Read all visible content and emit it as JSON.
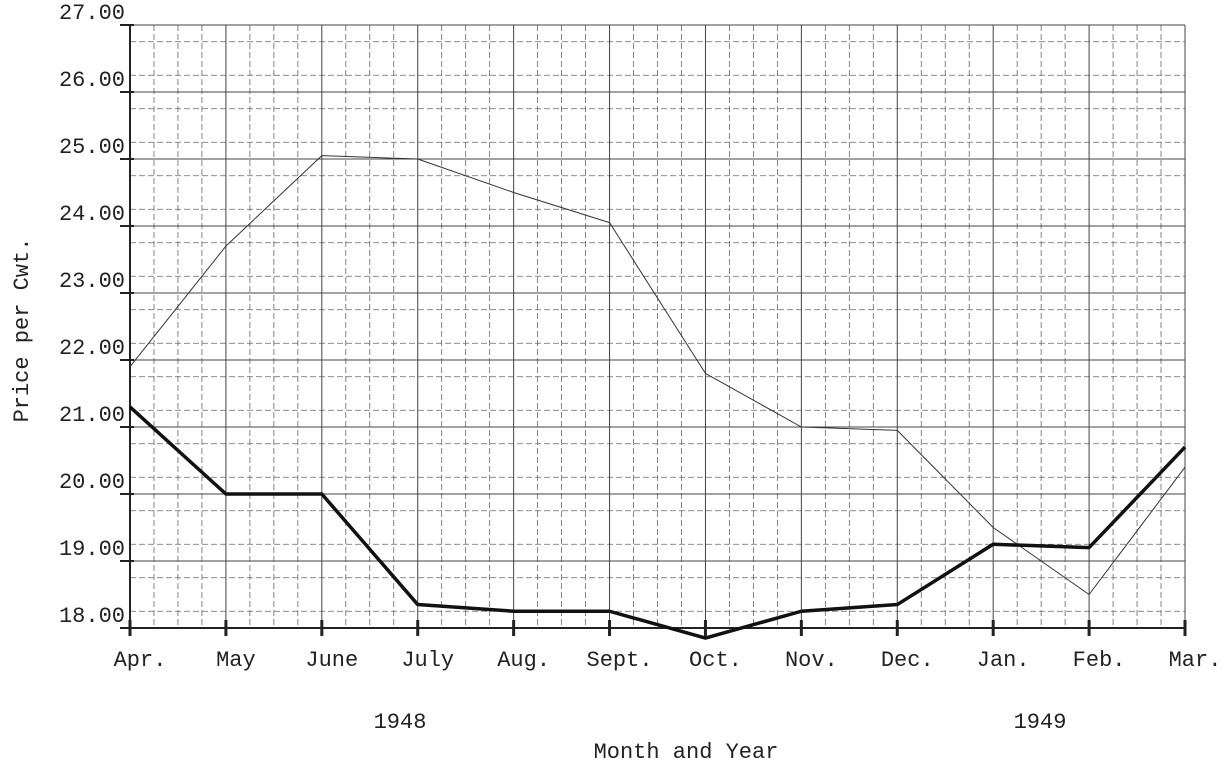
{
  "chart_data": {
    "type": "line",
    "y_label": "Price per Cwt.",
    "x_label": "Month and Year",
    "years": [
      "1948",
      "1949"
    ],
    "categories": [
      "Apr.",
      "May",
      "June",
      "July",
      "Aug.",
      "Sept.",
      "Oct.",
      "Nov.",
      "Dec.",
      "Jan.",
      "Feb.",
      "Mar."
    ],
    "series": [
      {
        "color": "#333333",
        "line_width": 1,
        "values": [
          21.9,
          23.7,
          25.05,
          25.0,
          24.5,
          24.05,
          21.8,
          21.0,
          20.95,
          19.5,
          18.5,
          20.4
        ]
      },
      {
        "color": "#111111",
        "line_width": 3.5,
        "values": [
          21.3,
          20.0,
          20.0,
          18.35,
          18.25,
          18.25,
          17.85,
          18.25,
          18.35,
          19.25,
          19.2,
          20.7
        ]
      }
    ],
    "ylim": [
      18,
      27
    ],
    "yticks": [
      {
        "value": 18,
        "label": "18.00"
      },
      {
        "value": 19,
        "label": "19.00"
      },
      {
        "value": 20,
        "label": "20.00"
      },
      {
        "value": 21,
        "label": "21.00"
      },
      {
        "value": 22,
        "label": "22.00"
      },
      {
        "value": 23,
        "label": "23.00"
      },
      {
        "value": 24,
        "label": "24.00"
      },
      {
        "value": 25,
        "label": "25.00"
      },
      {
        "value": 26,
        "label": "26.00"
      },
      {
        "value": 27,
        "label": "27.00"
      }
    ],
    "grid": true
  }
}
